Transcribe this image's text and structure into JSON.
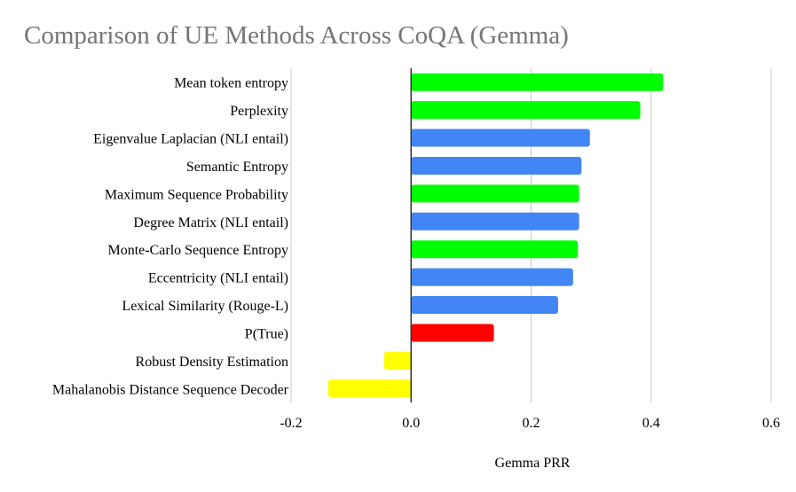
{
  "chart_data": {
    "type": "bar",
    "orientation": "horizontal",
    "title": "Comparison of UE Methods Across CoQA (Gemma)",
    "xlabel": "Gemma PRR",
    "ylabel": "",
    "xlim": [
      -0.2,
      0.6
    ],
    "xticks": [
      "-0.2",
      "0.0",
      "0.2",
      "0.4",
      "0.6"
    ],
    "xtick_values": [
      -0.2,
      0.0,
      0.2,
      0.4,
      0.6
    ],
    "grid": "vertical",
    "legend": "none",
    "categories": [
      "Mean token entropy",
      "Perplexity",
      "Eigenvalue Laplacian (NLI entail)",
      "Semantic Entropy",
      "Maximum Sequence Probability",
      "Degree Matrix (NLI entail)",
      "Monte-Carlo Sequence Entropy",
      "Eccentricity (NLI entail)",
      "Lexical Similarity (Rouge-L)",
      "P(True)",
      "Robust Density Estimation",
      "Mahalanobis Distance Sequence Decoder"
    ],
    "values": [
      0.42,
      0.382,
      0.298,
      0.284,
      0.28,
      0.28,
      0.278,
      0.27,
      0.245,
      0.138,
      -0.045,
      -0.138
    ],
    "colors": [
      "#00ff00",
      "#00ff00",
      "#4285f4",
      "#4285f4",
      "#00ff00",
      "#4285f4",
      "#00ff00",
      "#4285f4",
      "#4285f4",
      "#ff0000",
      "#ffff00",
      "#ffff00"
    ]
  }
}
